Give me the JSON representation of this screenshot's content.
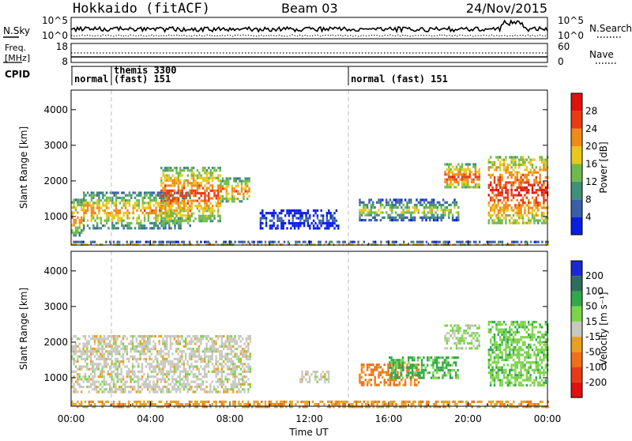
{
  "header": {
    "station": "Hokkaido (fitACF)",
    "beam": "Beam 03",
    "date": "24/Nov/2015"
  },
  "noise_panel": {
    "left_label": "N.Sky",
    "left_ticks": [
      "10^5",
      "10^0"
    ],
    "right_ticks": [
      "10^5",
      "10^0"
    ],
    "right_label": "N.Search"
  },
  "freq_panel": {
    "label_line1": "Freq.",
    "label_line2": "[MHz]",
    "left_ticks": [
      "18",
      "8"
    ],
    "right_ticks": [
      "60",
      "0"
    ],
    "right_label": "Nave"
  },
  "cpid_panel": {
    "label": "CPID",
    "segments": [
      {
        "start_hour": 0.0,
        "lines": [
          "normal"
        ]
      },
      {
        "start_hour": 2.0,
        "lines": [
          "themis 3300",
          "(fast) 151"
        ]
      },
      {
        "start_hour": 14.0,
        "lines": [
          "normal (fast) 151"
        ]
      }
    ]
  },
  "power_colorbar": {
    "label": "Power [dB]",
    "ticks": [
      "4",
      "8",
      "12",
      "16",
      "20",
      "24",
      "28"
    ],
    "colors": [
      "#0a1ee0",
      "#3a5fa8",
      "#3f8f7a",
      "#6fb94a",
      "#e8c81c",
      "#f08a18",
      "#ea3a14",
      "#e01010"
    ]
  },
  "velocity_colorbar": {
    "label": "Velocity [m s⁻¹]",
    "ticks": [
      "200",
      "100",
      "50",
      "15",
      "-15",
      "-50",
      "-100",
      "-200"
    ],
    "colors": [
      "#1a2ad0",
      "#2e6d5e",
      "#32a84a",
      "#7cd44a",
      "#c8c8c0",
      "#e8a020",
      "#f07018",
      "#e83a14",
      "#e01010"
    ]
  },
  "chart_data": [
    {
      "type": "heatmap",
      "name": "power",
      "ylabel": "Slant Range [km]",
      "xlabel": "Time UT",
      "xlim_hours": [
        0,
        24
      ],
      "ylim": [
        200,
        4550
      ],
      "x_ticks": [
        "00:00",
        "04:00",
        "08:00",
        "12:00",
        "16:00",
        "20:00",
        "00:00"
      ],
      "y_ticks": [
        1000,
        2000,
        3000,
        4000
      ],
      "echo_regions": [
        {
          "t0": 0.0,
          "t1": 0.6,
          "r_low": 500,
          "r_high": 1500,
          "power_db": 24
        },
        {
          "t0": 0.6,
          "t1": 6.0,
          "r_low": 700,
          "r_high": 1700,
          "power_db": 22
        },
        {
          "t0": 4.5,
          "t1": 7.5,
          "r_low": 900,
          "r_high": 2400,
          "power_db": 26
        },
        {
          "t0": 7.5,
          "t1": 9.0,
          "r_low": 1400,
          "r_high": 2100,
          "power_db": 24
        },
        {
          "t0": 9.5,
          "t1": 13.5,
          "r_low": 700,
          "r_high": 1200,
          "power_db": 8
        },
        {
          "t0": 14.5,
          "t1": 19.5,
          "r_low": 900,
          "r_high": 1500,
          "power_db": 18
        },
        {
          "t0": 18.8,
          "t1": 20.6,
          "r_low": 1800,
          "r_high": 2500,
          "power_db": 26
        },
        {
          "t0": 21.0,
          "t1": 24.0,
          "r_low": 800,
          "r_high": 2700,
          "power_db": 28
        },
        {
          "t0": 0.0,
          "t1": 24.0,
          "r_low": 200,
          "r_high": 320,
          "power_db": 20
        }
      ]
    },
    {
      "type": "heatmap",
      "name": "velocity",
      "ylabel": "Slant Range [km]",
      "xlabel": "Time UT",
      "xlim_hours": [
        0,
        24
      ],
      "ylim": [
        200,
        4550
      ],
      "x_ticks": [
        "00:00",
        "04:00",
        "08:00",
        "12:00",
        "16:00",
        "20:00",
        "00:00"
      ],
      "y_ticks": [
        1000,
        2000,
        3000,
        4000
      ],
      "echo_regions": [
        {
          "t0": 0.0,
          "t1": 9.0,
          "r_low": 600,
          "r_high": 2200,
          "velocity": 0
        },
        {
          "t0": 11.5,
          "t1": 13.0,
          "r_low": 900,
          "r_high": 1200,
          "velocity": 0
        },
        {
          "t0": 14.5,
          "t1": 17.5,
          "r_low": 800,
          "r_high": 1400,
          "velocity": -60
        },
        {
          "t0": 16.0,
          "t1": 19.5,
          "r_low": 1000,
          "r_high": 1600,
          "velocity": 60
        },
        {
          "t0": 18.8,
          "t1": 20.6,
          "r_low": 1800,
          "r_high": 2500,
          "velocity": 20
        },
        {
          "t0": 21.0,
          "t1": 24.0,
          "r_low": 800,
          "r_high": 2600,
          "velocity": 40
        },
        {
          "t0": 0.0,
          "t1": 24.0,
          "r_low": 200,
          "r_high": 360,
          "velocity": -40
        }
      ]
    }
  ]
}
